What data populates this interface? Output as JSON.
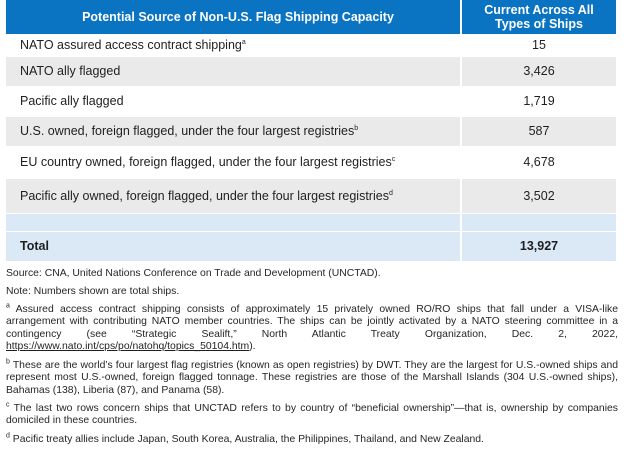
{
  "table": {
    "headers": [
      "Potential Source of Non-U.S. Flag Shipping Capacity",
      "Current Across All Types of Ships"
    ],
    "rows": [
      {
        "label": "NATO assured access contract shipping",
        "note": "a",
        "value": "15"
      },
      {
        "label": "NATO ally flagged",
        "note": "",
        "value": "3,426"
      },
      {
        "label": "Pacific ally flagged",
        "note": "",
        "value": "1,719"
      },
      {
        "label": "U.S. owned, foreign flagged, under the four largest registries",
        "note": "b",
        "value": "587"
      },
      {
        "label": "EU country owned, foreign flagged, under the four largest registries",
        "note": "c",
        "value": "4,678"
      },
      {
        "label": "Pacific ally owned, foreign flagged, under the four largest registries",
        "note": "d",
        "value": "3,502"
      }
    ],
    "total": {
      "label": "Total",
      "value": "13,927"
    }
  },
  "notes": {
    "source": "Source: CNA, United Nations Conference on Trade and Development (UNCTAD).",
    "note": "Note: Numbers shown are total ships.",
    "footnotes": [
      {
        "mark": "a",
        "text": " Assured access contract shipping consists of approximately 15 privately owned RO/RO ships that fall under a VISA-like arrangement with contributing NATO member countries. The ships can be jointly activated by a NATO steering committee in a contingency (see “Strategic Sealift,” North Atlantic Treaty Organization, Dec. 2, 2022, ",
        "link": "https://www.nato.int/cps/po/natohq/topics_50104.htm",
        "after": ")."
      },
      {
        "mark": "b",
        "text": " These are the world’s four largest flag registries (known as open registries) by DWT. They are the largest for U.S.-owned ships and represent most U.S.-owned, foreign flagged tonnage. These registries are those of the Marshall Islands (304 U.S.-owned ships), Bahamas (138), Liberia (87), and Panama (58)."
      },
      {
        "mark": "c",
        "text": " The last two rows concern ships that UNCTAD refers to by country of “beneficial ownership”—that is, ownership by companies domiciled in these countries."
      },
      {
        "mark": "d",
        "text": " Pacific treaty allies include Japan, South Korea, Australia, the Philippines, Thailand, and New Zealand."
      }
    ]
  }
}
